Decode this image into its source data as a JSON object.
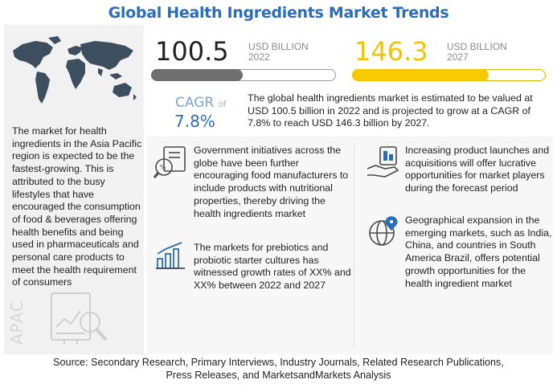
{
  "title": "Global Health Ingredients Market Trends",
  "left_panel": {
    "description": "The market for health ingredients in the Asia Pacific region is expected to be the fastest-growing. This is attributed to the busy lifestyles that have encouraged the consumption of food & beverages offering health benefits and being used in pharmaceuticals and personal care products to meet the health requirement of consumers",
    "region_label": "APAC",
    "map_icon": "world-map-icon",
    "analysis_icon": "chart-analysis-icon"
  },
  "market": {
    "value_2022": "100.5",
    "unit_2022_line1": "USD BILLION",
    "unit_2022_line2": "2022",
    "value_2027": "146.3",
    "unit_2027_line1": "USD BILLION",
    "unit_2027_line2": "2027",
    "bar_2022_fill_fraction": 0.5,
    "bar_2027_fill_fraction": 0.71,
    "cagr_label": "CAGR",
    "cagr_of": "of",
    "cagr_value": "7.8%",
    "summary": "The global health ingredients market is estimated to be valued at USD 100.5 billion in 2022 and is projected to grow at a CAGR of 7.8% to reach USD 146.3 billion by 2027."
  },
  "insights": [
    {
      "icon": "nutrition-search-icon",
      "text": "Government initiatives across the globe have been further encouraging food manufacturers to include products with nutritional properties, thereby driving the health ingredients market"
    },
    {
      "icon": "growth-bar-chart-icon",
      "text": "The markets for prebiotics and probiotic starter cultures has witnessed growth rates of XX% and XX% between 2022 and 2027"
    },
    {
      "icon": "product-launch-hand-icon",
      "text": "Increasing product launches and acquisitions will offer lucrative opportunities for market players during the forecast period"
    },
    {
      "icon": "globe-location-icon",
      "text": "Geographical expansion in the emerging markets, such as India, China, and countries in South America Brazil, offers potential growth opportunities for the health ingredient market"
    }
  ],
  "colors": {
    "title": "#2a6ebb",
    "accent_yellow": "#f7c900",
    "bar_gray": "#707070",
    "cagr_blue": "#2a6ebb"
  },
  "source": {
    "line1": "Source: Secondary Research, Primary Interviews, Industry Journals, Related Research Publications,",
    "line2": "Press Releases, and MarketsandMarkets Analysis"
  }
}
